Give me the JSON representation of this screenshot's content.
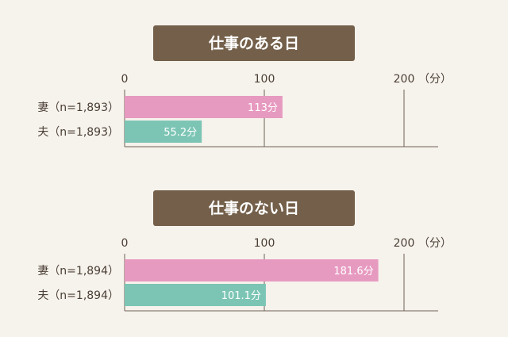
{
  "unit_label": "（分）",
  "colors": {
    "wife": "#e79ac0",
    "husband": "#7cc5b5",
    "title_bg": "#74604a"
  },
  "chart_data": [
    {
      "type": "bar",
      "orientation": "horizontal",
      "title": "仕事のある日",
      "xlim": [
        0,
        200
      ],
      "ticks": [
        0,
        100,
        200
      ],
      "categories": [
        "妻（n=1,893）",
        "夫（n=1,893）"
      ],
      "values": [
        113,
        55.2
      ],
      "value_labels": [
        "113分",
        "55.2分"
      ],
      "grid": true
    },
    {
      "type": "bar",
      "orientation": "horizontal",
      "title": "仕事のない日",
      "xlim": [
        0,
        200
      ],
      "ticks": [
        0,
        100,
        200
      ],
      "categories": [
        "妻（n=1,894）",
        "夫（n=1,894）"
      ],
      "values": [
        181.6,
        101.1
      ],
      "value_labels": [
        "181.6分",
        "101.1分"
      ],
      "grid": true
    }
  ]
}
